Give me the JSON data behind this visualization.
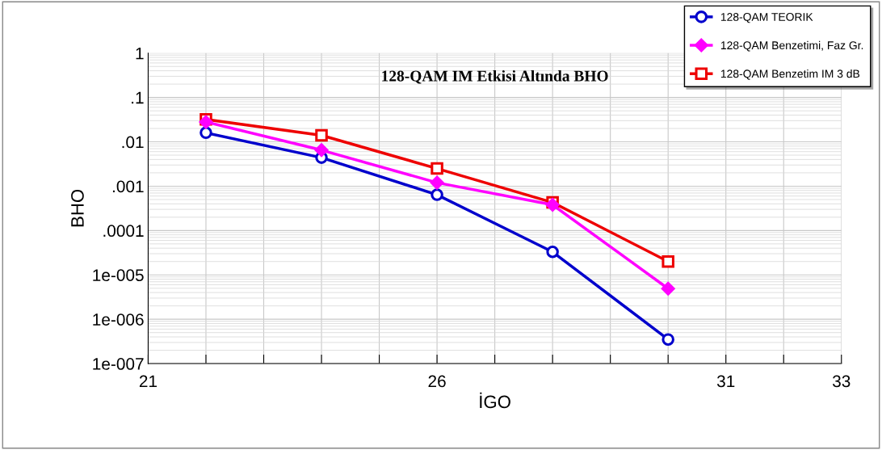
{
  "chart_data": {
    "type": "line",
    "title": "128-QAM IM Etkisi Altında BHO",
    "xlabel": "İGO",
    "ylabel": "BHO",
    "log": "y",
    "x": [
      22,
      24,
      26,
      28,
      30
    ],
    "series": [
      {
        "name": "128-QAM TEORIK",
        "color": "#0000cc",
        "marker": "circle",
        "values": [
          0.016,
          0.0044,
          0.00064,
          3.3e-05,
          3.5e-07
        ]
      },
      {
        "name": "128-QAM Benzetimi, Faz Gr.",
        "color": "#ff00ff",
        "marker": "diamond",
        "values": [
          0.028,
          0.0065,
          0.0012,
          0.00038,
          4.9e-06
        ]
      },
      {
        "name": "128-QAM Benzetim IM 3 dB",
        "color": "#ee0000",
        "marker": "square",
        "values": [
          0.032,
          0.014,
          0.0025,
          0.00043,
          2e-05
        ]
      }
    ],
    "xlim": [
      21,
      33
    ],
    "xticks": [
      21,
      {
        "value": 22,
        "label": null
      },
      {
        "value": 23,
        "label": null
      },
      {
        "value": 24,
        "label": null
      },
      {
        "value": 25,
        "label": null
      },
      26,
      {
        "value": 27,
        "label": null
      },
      {
        "value": 28,
        "label": null
      },
      {
        "value": 29,
        "label": null
      },
      {
        "value": 30,
        "label": null
      },
      31,
      {
        "value": 32,
        "label": null
      },
      33
    ],
    "ylim": [
      1e-07,
      1
    ],
    "yticks": [
      {
        "value": 1,
        "label": "1"
      },
      {
        "value": 0.1,
        "label": ".1"
      },
      {
        "value": 0.01,
        "label": ".01"
      },
      {
        "value": 0.001,
        "label": ".001"
      },
      {
        "value": 0.0001,
        "label": ".0001"
      },
      {
        "value": 1e-05,
        "label": "1e-005"
      },
      {
        "value": 1e-06,
        "label": "1e-006"
      },
      {
        "value": 1e-07,
        "label": "1e-007"
      }
    ],
    "grid": true,
    "legend": "top right",
    "line_style": "solid"
  }
}
